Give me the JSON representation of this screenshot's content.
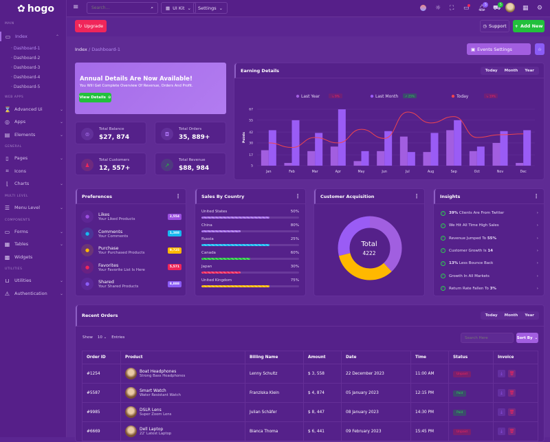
{
  "brand": {
    "name": "hogo"
  },
  "colors": {
    "accent": "#9b59e8",
    "green": "#22c03c",
    "red": "#f0265a",
    "yellow": "#ffb800",
    "cyan": "#17b9f0",
    "sidebar": "#561f89"
  },
  "sidebar": {
    "sections": {
      "main": "Main",
      "web_apps": "Web Apps",
      "general": "General",
      "multi_level": "Multi Level",
      "components": "Components",
      "utilities": "Utilities"
    },
    "index": "Index",
    "dashboards": [
      "Dashboard-1",
      "Dashboard-2",
      "Dashboard-3",
      "Dashboard-4",
      "Dashboard-5"
    ],
    "items": {
      "advanced_ui": "Advanced Ui",
      "apps": "Apps",
      "elements": "Elements",
      "pages": "Pages",
      "icons": "Icons",
      "charts": "Charts",
      "menu_level": "Menu Level",
      "forms": "Forms",
      "tables": "Tables",
      "widgets": "Widgets",
      "utilities": "Utilities",
      "authentication": "Authentication"
    }
  },
  "topbar": {
    "search_placeholder": "Search...",
    "ui_kit": "UI Kit",
    "settings": "Settings",
    "notifications_count": "5",
    "cart_count": "5"
  },
  "actions": {
    "upgrade": "Upgrade",
    "support": "Support",
    "add_new": "Add New",
    "events_settings": "Events Settings"
  },
  "breadcrumb": {
    "root": "Index",
    "current": "Dashboard-1"
  },
  "banner": {
    "title": "Annual Details Are Now Available!",
    "subtitle": "You Will Get Complete Overview Of Revenue, Orders And Profit.",
    "button": "View Details"
  },
  "stats": [
    {
      "label": "Total Balance",
      "value": "$27, 874"
    },
    {
      "label": "Total Orders",
      "value": "35, 889+"
    },
    {
      "label": "Total Customers",
      "value": "12, 557+"
    },
    {
      "label": "Total Revenue",
      "value": "$88, 984"
    }
  ],
  "ranges": [
    "Today",
    "Month",
    "Year"
  ],
  "earning": {
    "title": "Earning Details"
  },
  "chart_data": {
    "type": "bar",
    "categories": [
      "Jan",
      "Feb",
      "Mar",
      "Apr",
      "May",
      "Jun",
      "Jul",
      "Aug",
      "Sep",
      "Oct",
      "Nov",
      "Dec"
    ],
    "ylabel": "Points",
    "ylim": [
      5,
      67
    ],
    "yticks": [
      5,
      17,
      30,
      42,
      55,
      67
    ],
    "grid": true,
    "legend_position": "top",
    "series": [
      {
        "name": "Last Year",
        "badge": "9%",
        "badge_trend": "down",
        "type": "bar",
        "color": "#a25ee0",
        "values": [
          22,
          8,
          21,
          26,
          10,
          21,
          37,
          20,
          44,
          21,
          30,
          8
        ]
      },
      {
        "name": "Last Month",
        "badge": "25%",
        "badge_trend": "up",
        "type": "bar",
        "color": "#9a5cf5",
        "values": [
          44,
          55,
          41,
          67,
          21,
          43,
          20,
          41,
          55,
          26,
          43,
          44
        ]
      },
      {
        "name": "Today",
        "badge": "19%",
        "badge_trend": "down",
        "type": "line",
        "color": "#f0454f",
        "values": [
          30,
          25,
          36,
          30,
          45,
          35,
          64,
          52,
          59,
          36,
          39,
          40
        ]
      }
    ]
  },
  "preferences": {
    "title": "Preferences",
    "items": [
      {
        "title": "Likes",
        "desc": "Your Liked Products",
        "count": "2,554",
        "color": "#9b4fe0",
        "icon": "thumbs-up"
      },
      {
        "title": "Comments",
        "desc": "Your Comments",
        "count": "1,388",
        "color": "#17b9f0",
        "icon": "comment"
      },
      {
        "title": "Purchase",
        "desc": "Your Purchased Products",
        "count": "9,725",
        "color": "#ffb800",
        "icon": "cart"
      },
      {
        "title": "Favorites",
        "desc": "Your Favorite List Is Here",
        "count": "5,571",
        "color": "#f0265a",
        "icon": "heart"
      },
      {
        "title": "Shared",
        "desc": "Your Shared Products",
        "count": "8,888",
        "color": "#8b5cf6",
        "icon": "share"
      }
    ]
  },
  "sales": {
    "title": "Sales By Country",
    "items": [
      {
        "country": "United States",
        "percent_label": "50%",
        "fill": 70,
        "color": "#a36be8"
      },
      {
        "country": "China",
        "percent_label": "80%",
        "fill": 40,
        "color": "#a36be8"
      },
      {
        "country": "Russia",
        "percent_label": "25%",
        "fill": 70,
        "color": "#17b9f0"
      },
      {
        "country": "Canada",
        "percent_label": "60%",
        "fill": 50,
        "color": "#22c03c"
      },
      {
        "country": "Japan",
        "percent_label": "30%",
        "fill": 40,
        "color": "#f0265a"
      },
      {
        "country": "United Kingdom",
        "percent_label": "75%",
        "fill": 70,
        "color": "#ffb800"
      }
    ]
  },
  "acquisition": {
    "title": "Customer Acquisition",
    "total_label": "Total",
    "total": "4222",
    "slices": [
      {
        "value": 38,
        "color": "#a15fe0"
      },
      {
        "value": 33,
        "color": "#ffb800"
      },
      {
        "value": 29,
        "color": "#9a5cf5"
      }
    ]
  },
  "insights": {
    "title": "Insights",
    "items": [
      {
        "bold": "39%",
        "text": " Clients Are From Twitter",
        "bold_first": true
      },
      {
        "bold": "",
        "text": "We Hit All Time High Sales",
        "bold_first": true
      },
      {
        "bold": "55%",
        "text": "Revenue Jumped To ",
        "bold_first": false
      },
      {
        "bold": "14",
        "text": "Customer Growth Is ",
        "bold_first": false
      },
      {
        "bold": "13%",
        "text": " Less Bounce Back",
        "bold_first": true
      },
      {
        "bold": "",
        "text": "Growth In All Markets",
        "bold_first": true
      },
      {
        "bold": "3%",
        "text": "Return Rate Fallen To ",
        "bold_first": false
      }
    ]
  },
  "orders": {
    "title": "Recent Orders",
    "show": "Show",
    "entries_value": "10",
    "entries": "Entries",
    "search_placeholder": "Search Here",
    "sort_by": "Sort By",
    "columns": [
      "Order ID",
      "Product",
      "Billing Name",
      "Amount",
      "Date",
      "Time",
      "Status",
      "Invoice"
    ],
    "rows": [
      {
        "id": "#1254",
        "product": "Boat Headphones",
        "desc": "Strong Bass Headphones",
        "billing": "Lenny Schultz",
        "amount": "$ 3, 558",
        "date": "22 December 2023",
        "time": "11:00 AM",
        "status": "Unpaid"
      },
      {
        "id": "#5587",
        "product": "Smart Watch",
        "desc": "Water Resistant Watch",
        "billing": "Franziska Klein",
        "amount": "$ 4, 874",
        "date": "05 January 2023",
        "time": "12:15 PM",
        "status": "Paid"
      },
      {
        "id": "#9985",
        "product": "DSLR Lens",
        "desc": "Super Zoom Lens",
        "billing": "Julian Schäfer",
        "amount": "$ 8, 447",
        "date": "08 January 2023",
        "time": "14:30 PM",
        "status": "Paid"
      },
      {
        "id": "#6669",
        "product": "Dell Laptop",
        "desc": "22' Latest Laptop",
        "billing": "Bianca Thoma",
        "amount": "$ 6, 441",
        "date": "09 February 2023",
        "time": "15:45 PM",
        "status": "Unpaid"
      }
    ]
  }
}
